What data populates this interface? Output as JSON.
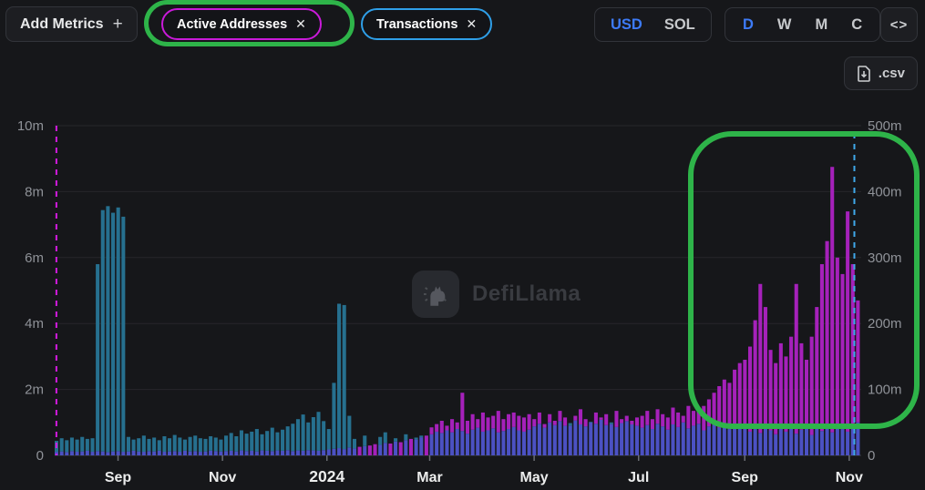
{
  "toolbar": {
    "add_metrics_label": "Add Metrics",
    "add_metrics_plus": "+",
    "metric_pills": [
      {
        "label": "Active Addresses",
        "close": "✕",
        "border_color": "#c91ad9"
      },
      {
        "label": "Transactions",
        "close": "✕",
        "border_color": "#2f9fe8"
      }
    ],
    "currency_toggle": {
      "options": [
        "USD",
        "SOL"
      ],
      "selected": "USD"
    },
    "interval_toggle": {
      "options": [
        "D",
        "W",
        "M",
        "C"
      ],
      "selected": "D"
    },
    "embed_label": "<>",
    "csv_label": ".csv"
  },
  "watermark": {
    "text": "DefiLlama"
  },
  "colors": {
    "background": "#16171a",
    "gridline": "#26272b",
    "baseline": "#3a3c41",
    "axis_text": "#8f9298",
    "x_axis_text": "#eceded",
    "accent_blue": "#3d7bf7",
    "annotation_green": "#2eb449"
  },
  "chart_data": {
    "type": "bar",
    "title": "",
    "start_date": "2023-07-26",
    "bucket_days": 3,
    "total_days": 471,
    "grid": true,
    "left_axis": {
      "series": "Active Addresses",
      "max": 10,
      "ticks": [
        "0",
        "2m",
        "4m",
        "6m",
        "8m",
        "10m"
      ]
    },
    "right_axis": {
      "series": "Transactions",
      "max": 500,
      "ticks": [
        "0",
        "100m",
        "200m",
        "300m",
        "400m",
        "500m"
      ]
    },
    "x_ticks": [
      {
        "label": "Sep",
        "day": 37
      },
      {
        "label": "Nov",
        "day": 98
      },
      {
        "label": "2024",
        "day": 159,
        "bold": true
      },
      {
        "label": "Mar",
        "day": 219
      },
      {
        "label": "May",
        "day": 280
      },
      {
        "label": "Jul",
        "day": 341
      },
      {
        "label": "Sep",
        "day": 403
      },
      {
        "label": "Nov",
        "day": 464
      }
    ],
    "overlap_color": "#4b51c3",
    "start_marker": {
      "day": 1,
      "color": "#d41ae0"
    },
    "end_marker": {
      "day": 467,
      "color": "#3fa9ea"
    },
    "series": [
      {
        "name": "Active Addresses",
        "axis": "left",
        "unit": "m",
        "color": "#a521ba",
        "values": [
          0.11,
          0.12,
          0.1,
          0.13,
          0.11,
          0.12,
          0.14,
          0.11,
          0.13,
          0.12,
          0.1,
          0.12,
          0.13,
          0.11,
          0.12,
          0.14,
          0.12,
          0.11,
          0.13,
          0.12,
          0.14,
          0.11,
          0.12,
          0.13,
          0.11,
          0.14,
          0.12,
          0.13,
          0.11,
          0.12,
          0.14,
          0.13,
          0.12,
          0.13,
          0.14,
          0.12,
          0.15,
          0.13,
          0.14,
          0.12,
          0.15,
          0.14,
          0.13,
          0.15,
          0.14,
          0.16,
          0.13,
          0.15,
          0.14,
          0.16,
          0.15,
          0.14,
          0.16,
          0.18,
          0.2,
          0.22,
          0.19,
          0.24,
          0.21,
          0.26,
          0.28,
          0.3,
          0.34,
          0.32,
          0.38,
          0.36,
          0.42,
          0.4,
          0.46,
          0.5,
          0.48,
          0.55,
          0.6,
          0.85,
          0.95,
          1.05,
          0.9,
          1.1,
          1.0,
          1.9,
          1.05,
          1.25,
          1.1,
          1.3,
          1.15,
          1.2,
          1.35,
          1.1,
          1.25,
          1.3,
          1.2,
          1.15,
          1.25,
          1.1,
          1.3,
          0.95,
          1.25,
          1.05,
          1.35,
          1.15,
          0.9,
          1.2,
          1.4,
          1.1,
          1.0,
          1.3,
          1.15,
          1.25,
          0.95,
          1.35,
          1.1,
          1.2,
          1.05,
          1.15,
          1.2,
          1.35,
          1.1,
          1.4,
          1.25,
          1.15,
          1.45,
          1.3,
          1.2,
          1.5,
          1.35,
          1.4,
          1.5,
          1.7,
          1.9,
          2.1,
          2.3,
          2.2,
          2.6,
          2.8,
          2.9,
          3.3,
          4.1,
          5.2,
          4.5,
          3.2,
          2.8,
          3.4,
          3.0,
          3.6,
          5.2,
          3.4,
          2.9,
          3.6,
          4.5,
          5.8,
          6.5,
          8.75,
          6.0,
          5.5,
          7.4,
          5.8,
          4.7
        ]
      },
      {
        "name": "Transactions",
        "axis": "right",
        "unit": "m",
        "color": "#26708f",
        "values": [
          22,
          26,
          23,
          27,
          24,
          28,
          25,
          26,
          290,
          372,
          378,
          368,
          376,
          362,
          28,
          24,
          26,
          30,
          25,
          27,
          23,
          29,
          26,
          31,
          27,
          24,
          28,
          30,
          26,
          25,
          29,
          27,
          24,
          30,
          34,
          29,
          38,
          33,
          36,
          40,
          32,
          37,
          42,
          35,
          39,
          44,
          48,
          55,
          62,
          50,
          58,
          66,
          52,
          40,
          110,
          230,
          228,
          60,
          25,
          null,
          30,
          null,
          null,
          28,
          35,
          null,
          26,
          null,
          32,
          null,
          27,
          30,
          null,
          32,
          36,
          34,
          38,
          35,
          40,
          37,
          33,
          39,
          42,
          36,
          38,
          41,
          35,
          37,
          40,
          43,
          38,
          36,
          39,
          44,
          48,
          42,
          50,
          46,
          52,
          45,
          49,
          53,
          47,
          44,
          51,
          48,
          54,
          46,
          50,
          43,
          49,
          52,
          47,
          45,
          42,
          46,
          40,
          48,
          44,
          39,
          47,
          43,
          50,
          41,
          45,
          48,
          38,
          44,
          47,
          42,
          49,
          40,
          46,
          43,
          45,
          36,
          40,
          34,
          44,
          38,
          32,
          42,
          36,
          46,
          33,
          39,
          43,
          31,
          41,
          37,
          45,
          35,
          48,
          40,
          36,
          44,
          50
        ]
      }
    ]
  }
}
